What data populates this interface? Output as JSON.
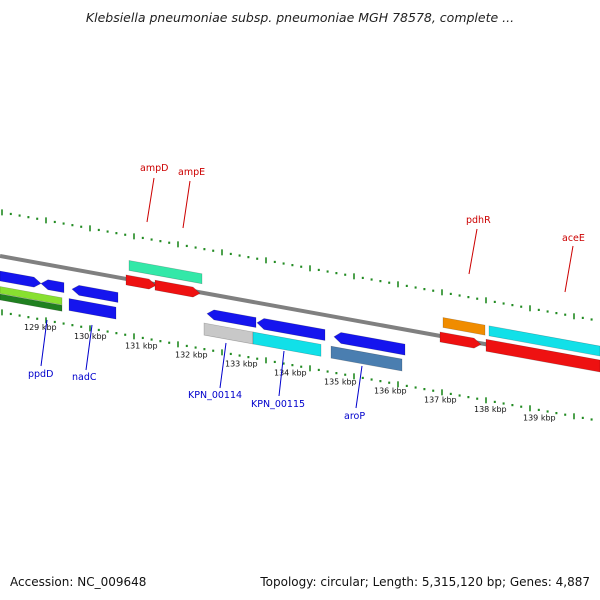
{
  "title": "Klebsiella pneumoniae subsp. pneumoniae MGH 78578, complete ...",
  "footer": {
    "accession": "Accession: NC_009648",
    "summary": "Topology: circular; Length: 5,315,120 bp; Genes: 4,887"
  },
  "colors": {
    "backbone": "#808080",
    "tick": "#228b22",
    "label_top": "#cc0000",
    "label_bottom": "#0000cc",
    "blue_gene": "#1515ee",
    "red_gene": "#ee1111",
    "cyan_gene": "#11e0e8",
    "teal_gene": "#33e8a8",
    "orange_gene": "#f08c00",
    "steel_gene": "#4a7eb0",
    "lime_gene": "#88e030",
    "gray_gene": "#c8c8c8",
    "darkgreen_gene": "#208020"
  },
  "kbp_labels": [
    "129 kbp",
    "130 kbp",
    "131 kbp",
    "132 kbp",
    "133 kbp",
    "134 kbp",
    "135 kbp",
    "136 kbp",
    "137 kbp",
    "138 kbp",
    "139 kbp"
  ],
  "top_labels": [
    {
      "name": "ampD",
      "key": "ampD"
    },
    {
      "name": "ampE",
      "key": "ampE"
    },
    {
      "name": "pdhR",
      "key": "pdhR"
    },
    {
      "name": "aceE",
      "key": "aceE"
    }
  ],
  "bottom_labels": [
    {
      "name": "ppdD",
      "key": "ppdD"
    },
    {
      "name": "nadC",
      "key": "nadC"
    },
    {
      "name": "KPN_00114",
      "key": "KPN_00114"
    },
    {
      "name": "KPN_00115",
      "key": "KPN_00115"
    },
    {
      "name": "aroP",
      "key": "aroP"
    }
  ]
}
